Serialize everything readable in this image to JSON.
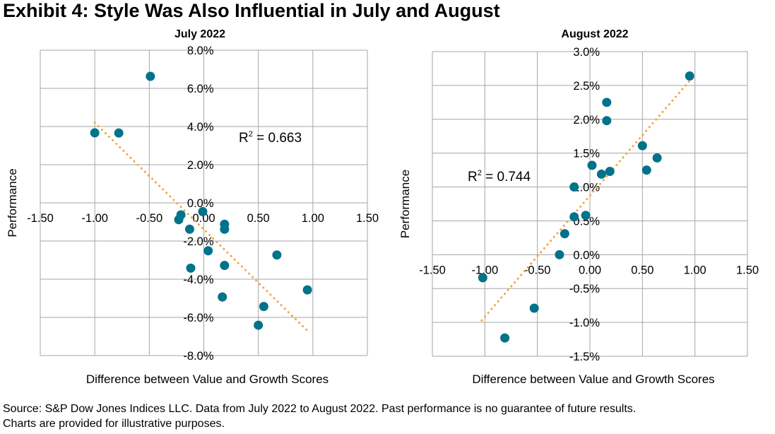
{
  "title": "Exhibit 4: Style Was Also Influential in July and August",
  "source_lines": [
    "Source: S&P Dow Jones Indices LLC. Data from July 2022 to August 2022. Past performance is no guarantee of future results.",
    "Charts are provided for illustrative purposes."
  ],
  "colors": {
    "points": "#00738a",
    "trendline": "#f4a540",
    "grid": "#a6a6a6"
  },
  "chart_data": [
    {
      "type": "scatter",
      "title": "July 2022",
      "xlabel": "Difference between Value and Growth Scores",
      "ylabel": "Performance",
      "xlim": [
        -1.5,
        1.5
      ],
      "ylim": [
        -8.0,
        8.0
      ],
      "x_ticks": [
        -1.5,
        -1.0,
        -0.5,
        0.0,
        0.5,
        1.0,
        1.5
      ],
      "x_tick_labels": [
        "-1.50",
        "-1.00",
        "-0.50",
        "0.00",
        "0.50",
        "1.00",
        "1.50"
      ],
      "y_ticks": [
        8,
        6,
        4,
        2,
        0,
        -2,
        -4,
        -6,
        -8
      ],
      "y_tick_labels": [
        "8.0%",
        "6.0%",
        "4.0%",
        "2.0%",
        "0.0%",
        "-2.0%",
        "-4.0%",
        "-6.0%",
        "-8.0%"
      ],
      "grid": true,
      "annotation": "R² = 0.663",
      "annotation_parts": {
        "prefix": "R",
        "sup": "2",
        "suffix": " = 0.663"
      },
      "trendline": {
        "x": [
          -1.0,
          0.95
        ],
        "y": [
          4.2,
          -6.7
        ]
      },
      "x": [
        -1.0,
        -0.78,
        -0.49,
        -0.21,
        -0.23,
        -0.01,
        -0.13,
        0.19,
        0.19,
        0.04,
        -0.12,
        0.19,
        0.67,
        0.17,
        0.55,
        0.5,
        0.95
      ],
      "y": [
        3.67,
        3.66,
        6.63,
        -0.63,
        -0.88,
        -0.46,
        -1.38,
        -1.12,
        -1.38,
        -2.51,
        -3.42,
        -3.28,
        -2.73,
        -4.93,
        -5.43,
        -6.41,
        -4.56
      ]
    },
    {
      "type": "scatter",
      "title": "August 2022",
      "xlabel": "Difference between Value and Growth Scores",
      "ylabel": "Performance",
      "xlim": [
        -1.5,
        1.5
      ],
      "ylim": [
        -1.5,
        3.0
      ],
      "x_ticks": [
        -1.5,
        -1.0,
        -0.5,
        0.0,
        0.5,
        1.0,
        1.5
      ],
      "x_tick_labels": [
        "-1.50",
        "-1.00",
        "-0.50",
        "0.00",
        "0.50",
        "1.00",
        "1.50"
      ],
      "y_ticks": [
        3.0,
        2.5,
        2.0,
        1.5,
        1.0,
        0.5,
        0.0,
        -0.5,
        -1.0,
        -1.5
      ],
      "y_tick_labels": [
        "3.0%",
        "2.5%",
        "2.0%",
        "1.5%",
        "1.0%",
        "0.5%",
        "0.0%",
        "-0.5%",
        "-1.0%",
        "-1.5%"
      ],
      "grid": true,
      "annotation": "R² = 0.744",
      "annotation_parts": {
        "prefix": "R",
        "sup": "2",
        "suffix": " = 0.744"
      },
      "trendline": {
        "x": [
          -1.03,
          0.95
        ],
        "y": [
          -0.97,
          2.57
        ]
      },
      "x": [
        0.95,
        0.16,
        0.16,
        0.5,
        0.64,
        0.54,
        0.02,
        0.11,
        0.19,
        -0.15,
        -0.15,
        -0.04,
        -0.24,
        -0.29,
        -1.02,
        -0.53,
        -0.81
      ],
      "y": [
        2.64,
        2.25,
        1.98,
        1.61,
        1.43,
        1.25,
        1.32,
        1.19,
        1.23,
        1.0,
        0.56,
        0.58,
        0.31,
        0.0,
        -0.34,
        -0.79,
        -1.23
      ]
    }
  ]
}
